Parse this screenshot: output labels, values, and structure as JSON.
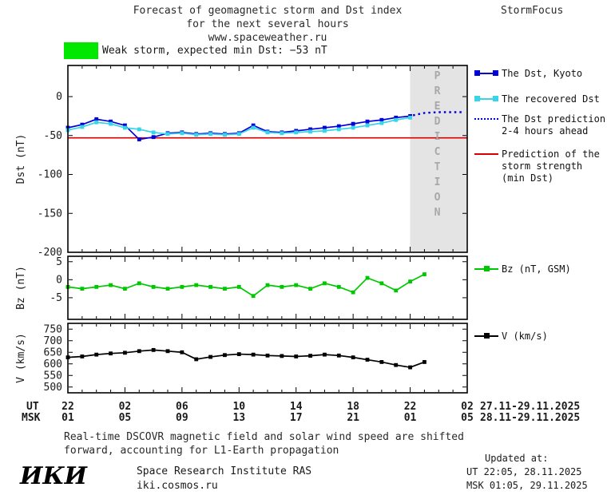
{
  "header": {
    "title_line1": "Forecast of geomagnetic storm and Dst index",
    "title_line2": "for the next several hours",
    "site": "www.spaceweather.ru",
    "brand": "StormFocus"
  },
  "badge": {
    "color": "#00e800",
    "label": "Weak storm, expected min Dst: −53 nT"
  },
  "legend": {
    "dst_kyoto": {
      "label": "The Dst, Kyoto",
      "color": "#0000d8"
    },
    "recovered": {
      "label": "The recovered Dst",
      "color": "#38d4e8"
    },
    "prediction": {
      "line1": "The Dst prediction",
      "line2": "2-4 hours ahead",
      "color": "#0000d8"
    },
    "min_dst": {
      "line1": "Prediction of the",
      "line2": "storm strength",
      "line3": "(min Dst)",
      "color": "#d80000"
    },
    "bz": {
      "label": "Bz (nT, GSM)",
      "color": "#00c800"
    },
    "v": {
      "label": "V (km/s)",
      "color": "#000000"
    }
  },
  "xaxis": {
    "ut_row_label": "UT",
    "msk_row_label": "MSK",
    "tick_hours": [
      0,
      4,
      8,
      12,
      16,
      20,
      24,
      28
    ],
    "ut_labels": [
      "22",
      "02",
      "06",
      "10",
      "14",
      "18",
      "22",
      "02"
    ],
    "msk_labels": [
      "01",
      "05",
      "09",
      "13",
      "17",
      "21",
      "01",
      "05"
    ],
    "ut_dates": "27.11-29.11.2025",
    "msk_dates": "28.11-29.11.2025"
  },
  "chart_data": [
    {
      "id": "dst",
      "type": "line",
      "title": "",
      "ylabel": "Dst (nT)",
      "ylim": [
        -200,
        40
      ],
      "yticks": [
        0,
        -50,
        -100,
        -150,
        -200
      ],
      "xlim": [
        0,
        28
      ],
      "hline": {
        "name": "Prediction of the storm strength (min Dst)",
        "color": "#d80000",
        "value": -53
      },
      "prediction_zone": {
        "from": 24,
        "to": 28,
        "label": "PREDICTION"
      },
      "series": [
        {
          "key": "dst_kyoto",
          "name": "The Dst, Kyoto",
          "color": "#0000d8",
          "marker": "square",
          "x": [
            0,
            1,
            2,
            3,
            4,
            5,
            6,
            7,
            8,
            9,
            10,
            11,
            12,
            13,
            14,
            15,
            16,
            17,
            18,
            19,
            20,
            21,
            22,
            23,
            24
          ],
          "values": [
            -40,
            -36,
            -29,
            -32,
            -37,
            -55,
            -52,
            -47,
            -46,
            -48,
            -47,
            -48,
            -47,
            -37,
            -45,
            -46,
            -44,
            -42,
            -40,
            -38,
            -35,
            -32,
            -30,
            -27,
            -25
          ]
        },
        {
          "key": "recovered_dst",
          "name": "The recovered Dst",
          "color": "#38d4e8",
          "marker": "square",
          "x": [
            0,
            1,
            2,
            3,
            4,
            5,
            6,
            7,
            8,
            9,
            10,
            11,
            12,
            13,
            14,
            15,
            16,
            17,
            18,
            19,
            20,
            21,
            22,
            23,
            24
          ],
          "values": [
            -43,
            -39,
            -33,
            -35,
            -40,
            -42,
            -46,
            -48,
            -47,
            -49,
            -48,
            -49,
            -48,
            -40,
            -46,
            -47,
            -46,
            -45,
            -44,
            -42,
            -40,
            -37,
            -34,
            -30,
            -27
          ]
        },
        {
          "key": "dst_prediction",
          "name": "The Dst prediction 2-4 hours ahead",
          "color": "#0000d8",
          "style": "dotted",
          "x": [
            24.2,
            25,
            26,
            27,
            27.6
          ],
          "values": [
            -24,
            -21,
            -20,
            -20,
            -20
          ]
        }
      ]
    },
    {
      "id": "bz",
      "type": "line",
      "title": "",
      "ylabel": "Bz (nT)",
      "ylim": [
        -11,
        6.5
      ],
      "yticks": [
        5,
        0,
        -5
      ],
      "xlim": [
        0,
        28
      ],
      "series": [
        {
          "key": "bz_gsm",
          "name": "Bz (nT, GSM)",
          "color": "#00c800",
          "marker": "square",
          "x": [
            0,
            1,
            2,
            3,
            4,
            5,
            6,
            7,
            8,
            9,
            10,
            11,
            12,
            13,
            14,
            15,
            16,
            17,
            18,
            19,
            20,
            21,
            22,
            23,
            24,
            25
          ],
          "values": [
            -2,
            -2.5,
            -2,
            -1.5,
            -2.5,
            -1,
            -2,
            -2.5,
            -2,
            -1.5,
            -2,
            -2.5,
            -2,
            -4.5,
            -1.5,
            -2,
            -1.5,
            -2.5,
            -1,
            -2,
            -3.5,
            0.5,
            -1,
            -3,
            -0.5,
            1.5
          ]
        }
      ]
    },
    {
      "id": "v",
      "type": "line",
      "title": "",
      "ylabel": "V (km/s)",
      "ylim": [
        475,
        775
      ],
      "yticks": [
        750,
        700,
        650,
        600,
        550,
        500
      ],
      "xlim": [
        0,
        28
      ],
      "series": [
        {
          "key": "solar_wind_speed",
          "name": "V (km/s)",
          "color": "#000000",
          "marker": "square",
          "x": [
            0,
            1,
            2,
            3,
            4,
            5,
            6,
            7,
            8,
            9,
            10,
            11,
            12,
            13,
            14,
            15,
            16,
            17,
            18,
            19,
            20,
            21,
            22,
            23,
            24,
            25
          ],
          "values": [
            628,
            632,
            640,
            645,
            648,
            655,
            660,
            655,
            650,
            620,
            630,
            638,
            642,
            640,
            636,
            634,
            632,
            635,
            640,
            636,
            628,
            618,
            608,
            595,
            585,
            608
          ]
        }
      ]
    }
  ],
  "footer": {
    "line1": "Real-time DSCOVR magnetic field and solar wind speed are shifted",
    "line2": "forward, accounting for L1-Earth propagation"
  },
  "updated": {
    "heading": "Updated at:",
    "ut": "UT  22:05, 28.11.2025",
    "msk": "MSK 01:05, 29.11.2025"
  },
  "logo": {
    "mark": "ИКИ",
    "institute": "Space Research Institute RAS",
    "site": "iki.cosmos.ru"
  }
}
